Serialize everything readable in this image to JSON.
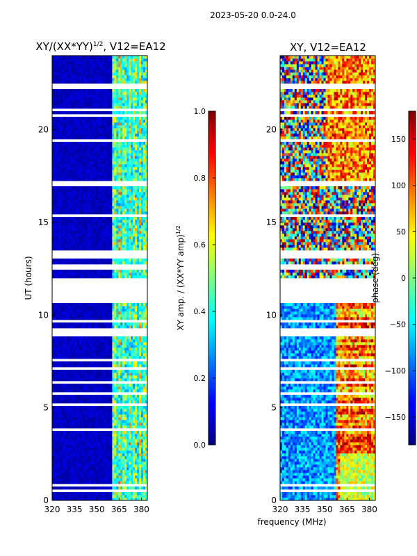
{
  "figure": {
    "suptitle": "2023-05-20 0.0-24.0",
    "xlabel": "frequency (MHz)"
  },
  "chart_data": [
    {
      "type": "heatmap",
      "title": "XY/(XX*YY)^{1/2}, V12=EA12",
      "title_main": "XY/(XX*YY)",
      "title_exp": "1/2",
      "title_tail": ", V12=EA12",
      "xlabel": "frequency (MHz)",
      "ylabel": "UT (hours)",
      "xlim": [
        320,
        384
      ],
      "ylim": [
        0,
        24
      ],
      "xticks": [
        320,
        335,
        350,
        365,
        380
      ],
      "yticks": [
        0,
        5,
        10,
        15,
        20
      ],
      "colorbar": {
        "label": "XY amp. / (XX*YY amp)^{1/2}",
        "label_main": "XY amp. / (XX*YY amp)",
        "label_exp": "1/2",
        "range": [
          0.0,
          1.0
        ],
        "ticks": [
          "0.0",
          "0.2",
          "0.4",
          "0.6",
          "0.8",
          "1.0"
        ],
        "tick_values": [
          0,
          0.2,
          0.4,
          0.6,
          0.8,
          1.0
        ]
      },
      "data_gaps_hours": [
        [
          10.7,
          12.0
        ],
        [
          13.0,
          13.5
        ],
        [
          16.9,
          17.2
        ],
        [
          15.3,
          15.5
        ],
        [
          3.8,
          3.95
        ],
        [
          6.3,
          6.5
        ],
        [
          22.2,
          22.5
        ],
        [
          8.9,
          9.0
        ],
        [
          19.0,
          19.1
        ],
        [
          2.5,
          2.6
        ],
        [
          0.5,
          0.6
        ],
        [
          9.6,
          9.7
        ],
        [
          14.2,
          14.3
        ],
        [
          21.0,
          21.1
        ]
      ],
      "active_band_MHz": [
        360,
        384
      ]
    },
    {
      "type": "heatmap",
      "title": "XY, V12=EA12",
      "xlabel": "frequency (MHz)",
      "ylabel": "",
      "xlim": [
        320,
        384
      ],
      "ylim": [
        0,
        24
      ],
      "xticks": [
        320,
        335,
        350,
        365,
        380
      ],
      "yticks": [
        0,
        5,
        10,
        15,
        20
      ],
      "colorbar": {
        "label": "phase (deg)",
        "range": [
          -180,
          180
        ],
        "ticks": [
          "−150",
          "−100",
          "−50",
          "0",
          "50",
          "100",
          "150"
        ],
        "tick_values": [
          -150,
          -100,
          -50,
          0,
          50,
          100,
          150
        ]
      },
      "data_gaps_hours": [
        [
          10.7,
          12.0
        ],
        [
          13.0,
          13.5
        ],
        [
          16.9,
          17.2
        ],
        [
          15.3,
          15.5
        ],
        [
          3.8,
          3.95
        ],
        [
          6.3,
          6.5
        ],
        [
          22.2,
          22.5
        ],
        [
          8.9,
          9.0
        ],
        [
          19.0,
          19.1
        ],
        [
          2.5,
          2.6
        ],
        [
          0.5,
          0.6
        ],
        [
          9.6,
          9.7
        ],
        [
          14.2,
          14.3
        ],
        [
          21.0,
          21.1
        ]
      ]
    }
  ],
  "colors": {
    "jet": [
      "#00007f",
      "#0000ff",
      "#007fff",
      "#00ffff",
      "#7fff7f",
      "#ffff00",
      "#ff7f00",
      "#ff0000",
      "#7f0000"
    ]
  }
}
